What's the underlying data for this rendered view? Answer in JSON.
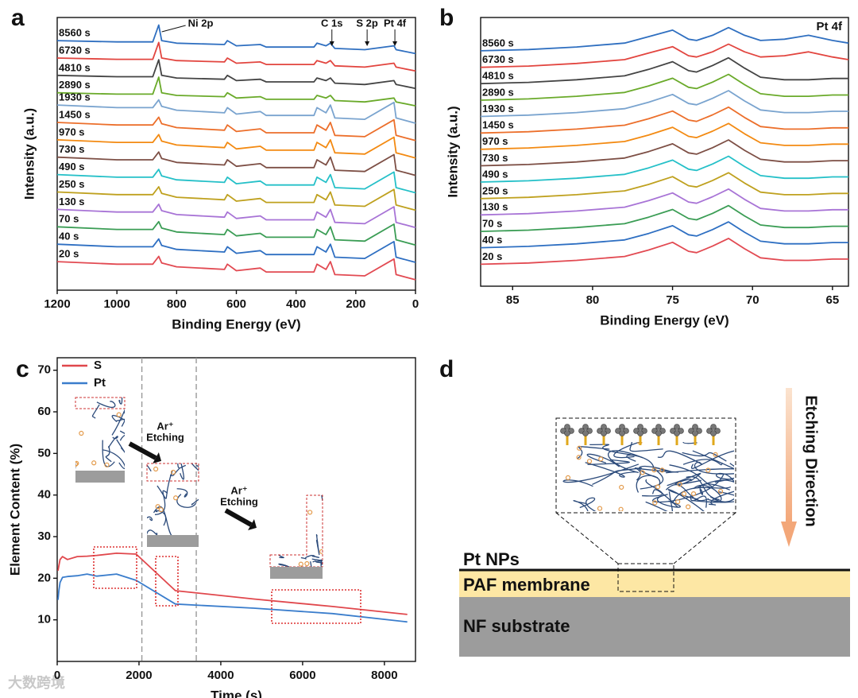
{
  "chart_data": [
    {
      "type": "line",
      "panel": "a",
      "xlabel": "Binding Energy (eV)",
      "ylabel": "Intensity (a.u.)",
      "xlim": [
        1200,
        0
      ],
      "xticks": [
        1200,
        1000,
        800,
        600,
        400,
        200,
        0
      ],
      "ylim": [
        0,
        105
      ],
      "x": [
        1200,
        1000,
        880,
        860,
        850,
        800,
        640,
        630,
        600,
        520,
        500,
        340,
        330,
        300,
        285,
        270,
        170,
        72,
        65,
        0
      ],
      "annotations": [
        {
          "text": "Ni 2p",
          "x": 855
        },
        {
          "text": "C 1s",
          "x": 280
        },
        {
          "text": "S 2p",
          "x": 162
        },
        {
          "text": "Pt 4f",
          "x": 69
        }
      ],
      "series": [
        {
          "name": "8560 s",
          "color": "#2f6fc0",
          "values": [
            96.1,
            95.6,
            95.6,
            102.1,
            96.1,
            95.1,
            94.6,
            96.1,
            94.1,
            94.6,
            93.6,
            93.6,
            95.1,
            94.1,
            95.1,
            93.1,
            92.6,
            94.1,
            92.6,
            91.1
          ]
        },
        {
          "name": "6730 s",
          "color": "#e2453f",
          "values": [
            89.4,
            88.9,
            88.9,
            95.4,
            89.4,
            88.4,
            87.9,
            89.4,
            87.4,
            87.9,
            86.9,
            86.9,
            88.4,
            87.4,
            88.4,
            86.4,
            85.9,
            87.4,
            85.9,
            84.4
          ]
        },
        {
          "name": "4810 s",
          "color": "#444444",
          "values": [
            82.7,
            82.2,
            82.2,
            88.7,
            82.7,
            81.7,
            81.2,
            82.7,
            80.7,
            81.2,
            80.2,
            80.2,
            81.7,
            80.7,
            81.7,
            79.7,
            79.2,
            80.7,
            79.2,
            77.7
          ]
        },
        {
          "name": "2890 s",
          "color": "#6aaa2a",
          "values": [
            76,
            75.5,
            75.5,
            82,
            76,
            75,
            74.5,
            76,
            74,
            74.5,
            73.5,
            73.5,
            75,
            74,
            75,
            73,
            72.5,
            74,
            72.5,
            71
          ]
        },
        {
          "name": "1930 s",
          "color": "#7aa4cf",
          "values": [
            71.3,
            70.3,
            70.3,
            73.3,
            70.8,
            69.3,
            68.3,
            70.3,
            67.8,
            68.8,
            67.3,
            67.3,
            70.3,
            68.3,
            71.3,
            66.3,
            65.8,
            72.3,
            66.3,
            64.3
          ]
        },
        {
          "name": "1450 s",
          "color": "#ec6f2b",
          "values": [
            64.6,
            63.6,
            63.6,
            66.6,
            64.1,
            62.6,
            61.6,
            63.6,
            61.1,
            62.1,
            60.6,
            60.6,
            63.6,
            61.6,
            64.6,
            59.6,
            59.1,
            65.6,
            59.6,
            57.6
          ]
        },
        {
          "name": "970 s",
          "color": "#f38a12",
          "values": [
            57.9,
            56.9,
            56.9,
            59.9,
            57.4,
            55.9,
            54.9,
            56.9,
            54.4,
            55.4,
            53.9,
            53.9,
            56.9,
            54.9,
            57.9,
            52.9,
            52.4,
            58.9,
            52.9,
            50.9
          ]
        },
        {
          "name": "730 s",
          "color": "#7d4f45",
          "values": [
            51.2,
            50.2,
            50.2,
            53.2,
            50.7,
            49.2,
            48.2,
            50.2,
            47.7,
            48.7,
            47.2,
            47.2,
            50.2,
            48.2,
            51.2,
            46.2,
            45.7,
            52.2,
            46.2,
            44.2
          ]
        },
        {
          "name": "490 s",
          "color": "#25c0c8",
          "values": [
            44.5,
            43.5,
            43.5,
            46.5,
            44,
            42.5,
            41.5,
            43.5,
            41,
            42,
            40.5,
            40.5,
            43.5,
            41.5,
            44.5,
            39.5,
            39,
            45.5,
            39.5,
            37.5
          ]
        },
        {
          "name": "250 s",
          "color": "#bfa11f",
          "values": [
            37.8,
            36.8,
            36.8,
            39.8,
            37.3,
            35.8,
            34.8,
            36.8,
            34.3,
            35.3,
            33.8,
            33.8,
            36.8,
            34.8,
            37.8,
            32.8,
            32.3,
            38.8,
            32.8,
            30.8
          ]
        },
        {
          "name": "130 s",
          "color": "#a874d6",
          "values": [
            31.1,
            30.1,
            30.1,
            33.1,
            30.6,
            29.1,
            28.1,
            30.1,
            27.6,
            28.6,
            27.1,
            27.1,
            30.1,
            28.1,
            31.1,
            26.1,
            25.6,
            32.1,
            26.1,
            24.1
          ]
        },
        {
          "name": "70 s",
          "color": "#3b9d55",
          "values": [
            24.4,
            23.4,
            23.4,
            26.4,
            23.9,
            22.4,
            21.4,
            23.4,
            20.9,
            21.9,
            20.4,
            20.4,
            23.4,
            21.4,
            24.4,
            19.4,
            18.9,
            25.4,
            19.4,
            17.4
          ]
        },
        {
          "name": "40 s",
          "color": "#2e6fc2",
          "values": [
            17.7,
            16.7,
            16.7,
            19.7,
            17.2,
            15.7,
            14.7,
            16.7,
            14.2,
            15.2,
            13.7,
            13.7,
            16.7,
            14.7,
            17.7,
            12.7,
            12.2,
            18.7,
            12.7,
            10.7
          ]
        },
        {
          "name": "20 s",
          "color": "#e24a52",
          "values": [
            11,
            10,
            10,
            13,
            10.5,
            9,
            8,
            10,
            7.5,
            8.5,
            7,
            7,
            10,
            8,
            11,
            6,
            5.5,
            12,
            6,
            4
          ]
        }
      ]
    },
    {
      "type": "line",
      "panel": "b",
      "xlabel": "Binding Energy (eV)",
      "ylabel": "Intensity (a.u.)",
      "xlim": [
        87,
        64
      ],
      "xticks": [
        85,
        80,
        75,
        70,
        65
      ],
      "ylim": [
        0,
        104
      ],
      "x": [
        87,
        84,
        81,
        78,
        76.5,
        75,
        74,
        73.5,
        72.5,
        71.5,
        70.5,
        69.5,
        68,
        66.5,
        65,
        64
      ],
      "annotations": [
        {
          "text": "Pt 4f"
        }
      ],
      "series": [
        {
          "name": "8560 s",
          "color": "#2f6fc0",
          "values": [
            91.1,
            91.6,
            92.6,
            94.1,
            96.6,
            99.1,
            95.6,
            95.1,
            97.1,
            100.1,
            97.1,
            95.1,
            95.6,
            97.1,
            95.1,
            94.1
          ]
        },
        {
          "name": "6730 s",
          "color": "#e2453f",
          "values": [
            84.7,
            85.2,
            86.2,
            87.7,
            90.2,
            92.7,
            89.2,
            88.7,
            90.7,
            93.7,
            90.7,
            88.7,
            89.2,
            90.7,
            88.7,
            87.7
          ]
        },
        {
          "name": "4810 s",
          "color": "#444444",
          "values": [
            78.4,
            78.9,
            79.9,
            81.4,
            83.9,
            86.9,
            83.4,
            82.9,
            85.4,
            88.4,
            84.4,
            80.9,
            79.9,
            79.9,
            80.4,
            80.4
          ]
        },
        {
          "name": "2890 s",
          "color": "#6aaa2a",
          "values": [
            72,
            72.5,
            73.5,
            75,
            77.5,
            80.5,
            77,
            76.5,
            79,
            82,
            78,
            74.5,
            73.5,
            73.5,
            74,
            74
          ]
        },
        {
          "name": "1930 s",
          "color": "#7aa4cf",
          "values": [
            65.7,
            66.2,
            67.2,
            68.7,
            71.2,
            74.2,
            70.7,
            70.2,
            72.7,
            75.7,
            71.7,
            68.2,
            67.2,
            67.2,
            67.7,
            67.7
          ]
        },
        {
          "name": "1450 s",
          "color": "#ec6f2b",
          "values": [
            59.3,
            59.8,
            60.8,
            62.3,
            64.8,
            67.8,
            64.3,
            63.8,
            66.3,
            69.3,
            65.3,
            61.8,
            60.8,
            60.8,
            61.3,
            61.3
          ]
        },
        {
          "name": "970 s",
          "color": "#f38a12",
          "values": [
            53,
            53.5,
            54.5,
            56,
            58.5,
            61.5,
            58,
            57.5,
            60,
            63,
            59,
            55.5,
            54.5,
            54.5,
            55,
            55
          ]
        },
        {
          "name": "730 s",
          "color": "#7d4f45",
          "values": [
            46.6,
            47.1,
            48.1,
            49.6,
            52.1,
            55.1,
            51.6,
            51.1,
            53.6,
            56.6,
            52.6,
            49.1,
            48.1,
            48.1,
            48.6,
            48.6
          ]
        },
        {
          "name": "490 s",
          "color": "#25c0c8",
          "values": [
            40.3,
            40.8,
            41.8,
            43.3,
            45.8,
            48.8,
            45.3,
            44.8,
            47.3,
            50.3,
            46.3,
            42.8,
            41.8,
            41.8,
            42.3,
            42.3
          ]
        },
        {
          "name": "250 s",
          "color": "#bfa11f",
          "values": [
            33.9,
            34.4,
            35.4,
            36.9,
            39.4,
            42.4,
            38.9,
            38.4,
            40.9,
            43.9,
            39.9,
            36.4,
            35.4,
            35.4,
            35.9,
            35.9
          ]
        },
        {
          "name": "130 s",
          "color": "#a874d6",
          "values": [
            27.6,
            28.1,
            29.1,
            30.6,
            33.1,
            36.1,
            32.6,
            32.1,
            34.6,
            37.6,
            33.6,
            30.1,
            29.1,
            29.1,
            29.6,
            29.6
          ]
        },
        {
          "name": "70 s",
          "color": "#3b9d55",
          "values": [
            21.2,
            21.7,
            22.7,
            24.2,
            26.7,
            29.7,
            26.2,
            25.7,
            28.2,
            31.2,
            27.2,
            23.7,
            22.7,
            22.7,
            23.2,
            23.2
          ]
        },
        {
          "name": "40 s",
          "color": "#2e6fc2",
          "values": [
            14.9,
            15.4,
            16.4,
            17.9,
            20.4,
            23.4,
            19.9,
            19.4,
            21.9,
            24.9,
            20.9,
            17.4,
            16.4,
            16.4,
            16.9,
            16.9
          ]
        },
        {
          "name": "20 s",
          "color": "#e24a52",
          "values": [
            8.5,
            9,
            10,
            11.5,
            14,
            17,
            13.5,
            13,
            15.5,
            18.5,
            14.5,
            11,
            10,
            10,
            10.5,
            10.5
          ]
        }
      ]
    },
    {
      "type": "line",
      "panel": "c",
      "xlabel": "Time (s)",
      "ylabel": "Element Content (%)",
      "xlim": [
        0,
        8760
      ],
      "xticks": [
        0,
        2000,
        4000,
        6000,
        8000
      ],
      "ylim": [
        0,
        73
      ],
      "yticks": [
        10,
        20,
        30,
        40,
        50,
        60,
        70
      ],
      "legend": "upper left",
      "vlines": [
        2070,
        3400
      ],
      "annotations": [
        [
          "Ar⁺",
          "Etching"
        ],
        [
          "Ar⁺",
          "Etching"
        ]
      ],
      "x": [
        20,
        40,
        70,
        130,
        250,
        490,
        730,
        970,
        1450,
        1930,
        2890,
        4810,
        6730,
        8560
      ],
      "series": [
        {
          "name": "S",
          "color": "#e0474c",
          "values": [
            21.8,
            23,
            24.5,
            25.2,
            24.5,
            25.2,
            25.3,
            25.5,
            26,
            25.8,
            17,
            15,
            13.2,
            11.3
          ]
        },
        {
          "name": "Pt",
          "color": "#3a7dcc",
          "values": [
            14.8,
            17,
            19,
            20.2,
            20.4,
            20.6,
            21,
            20.5,
            21,
            19.5,
            13.8,
            12.8,
            11.5,
            9.5
          ]
        }
      ]
    }
  ],
  "diagram": {
    "panel": "d",
    "direction": "Etching Direction",
    "layers": [
      "Pt NPs",
      "PAF membrane",
      "NF substrate"
    ]
  },
  "watermark": "大数跨境"
}
